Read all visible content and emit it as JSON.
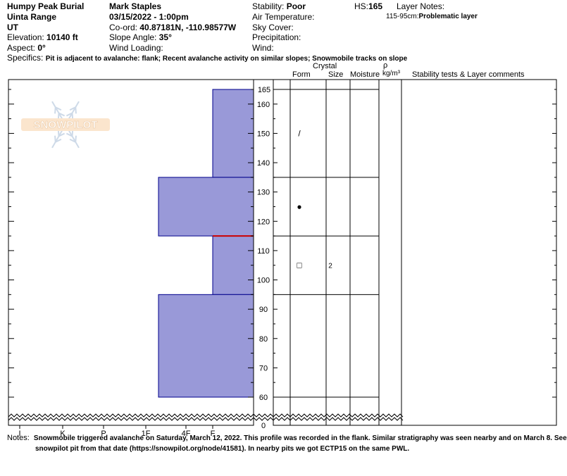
{
  "header": {
    "location": "Humpy Peak Burial",
    "range": "Uinta Range",
    "state": "UT",
    "elevation_label": "Elevation:",
    "elevation_value": "10140 ft",
    "aspect_label": "Aspect:",
    "aspect_value": "0°",
    "observer": "Mark Staples",
    "datetime": "03/15/2022 - 1:00pm",
    "coord_label": "Co-ord:",
    "coord_value": "40.87181N, -110.98577W",
    "slope_label": "Slope Angle:",
    "slope_value": "35°",
    "wind_loading_label": "Wind Loading:",
    "stability_label": "Stability:",
    "stability_value": "Poor",
    "air_temp_label": "Air Temperature:",
    "sky_cover_label": "Sky Cover:",
    "precip_label": "Precipitation:",
    "wind_label": "Wind:",
    "hs_label": "HS:",
    "hs_value": "165",
    "layer_notes_label": "Layer Notes:",
    "layer_note_range": "115-95cm:",
    "layer_note_text": "Problematic layer",
    "specifics_label": "Specifics:",
    "specifics_text": "Pit is adjacent to avalanche: flank; Recent avalanche activity on similar slopes; Snowmobile tracks on slope"
  },
  "columns": {
    "form": "Form",
    "crystal": "Crystal",
    "size": "Size",
    "moisture": "Moisture",
    "rho": "ρ",
    "density_unit": "kg/m³",
    "stability_comments": "Stability tests & Layer comments"
  },
  "watermark": "SNOWPILOT",
  "notes_label": "Notes:",
  "notes_line1": "Snowmobile triggered avalanche on Saturday, March 12, 2022. This profile was recorded in the flank. Similar stratigraphy was seen nearby and on March 8. See",
  "notes_line2": "snowpilot pit from that date (https://snowpilot.org/node/41581). In nearby pits we got ECTP15 on the same PWL.",
  "colors": {
    "hardness_fill": "#9999d8",
    "hardness_stroke": "#00008b",
    "problem_line": "#cc0000"
  },
  "chart_data": {
    "type": "bar",
    "orientation": "horizontal",
    "y_unit": "cm",
    "ylim": [
      0,
      165
    ],
    "y_break": [
      0,
      60
    ],
    "y_ticks": [
      0,
      60,
      70,
      80,
      90,
      100,
      110,
      120,
      130,
      140,
      150,
      160,
      165
    ],
    "x_categories": [
      "I",
      "K",
      "P",
      "1F",
      "4F",
      "F"
    ],
    "layers": [
      {
        "top": 165,
        "bottom": 135,
        "hardness": "F",
        "form": "/",
        "size": "",
        "moisture": "",
        "density": ""
      },
      {
        "top": 135,
        "bottom": 115,
        "hardness": "1F-",
        "form": "●",
        "size": "",
        "moisture": "",
        "density": ""
      },
      {
        "top": 115,
        "bottom": 95,
        "hardness": "F",
        "form": "□",
        "size": "2",
        "moisture": "",
        "density": ""
      },
      {
        "top": 95,
        "bottom": 60,
        "hardness": "1F-",
        "form": "",
        "size": "",
        "moisture": "",
        "density": ""
      }
    ],
    "problem_layer_line": 115
  }
}
